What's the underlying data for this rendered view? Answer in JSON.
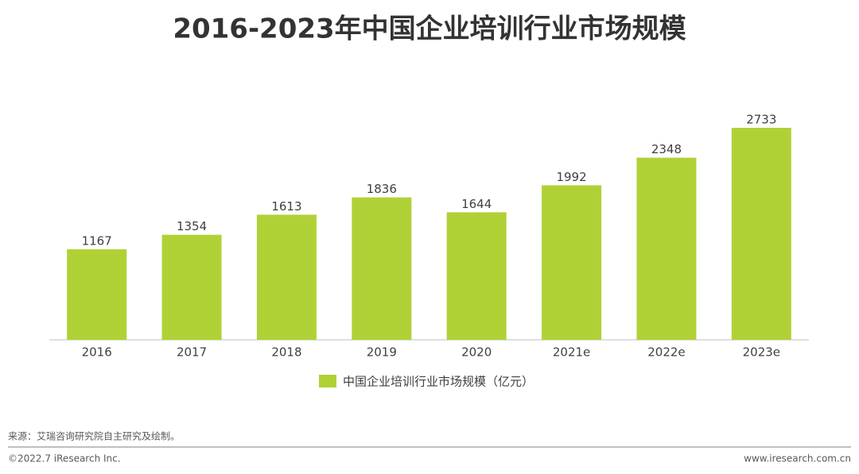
{
  "chart_data": {
    "type": "bar",
    "title": "2016-2023年中国企业培训行业市场规模",
    "categories": [
      "2016",
      "2017",
      "2018",
      "2019",
      "2020",
      "2021e",
      "2022e",
      "2023e"
    ],
    "series": [
      {
        "name": "中国企业培训行业市场规模（亿元）",
        "color": "#b0d136",
        "values": [
          1167,
          1354,
          1613,
          1836,
          1644,
          1992,
          2348,
          2733
        ]
      }
    ],
    "value_labels_shown": true
  },
  "footer": {
    "source": "来源：艾瑞咨询研究院自主研究及绘制。",
    "copyright": "©2022.7 iResearch Inc.",
    "website": "www.iresearch.com.cn"
  }
}
